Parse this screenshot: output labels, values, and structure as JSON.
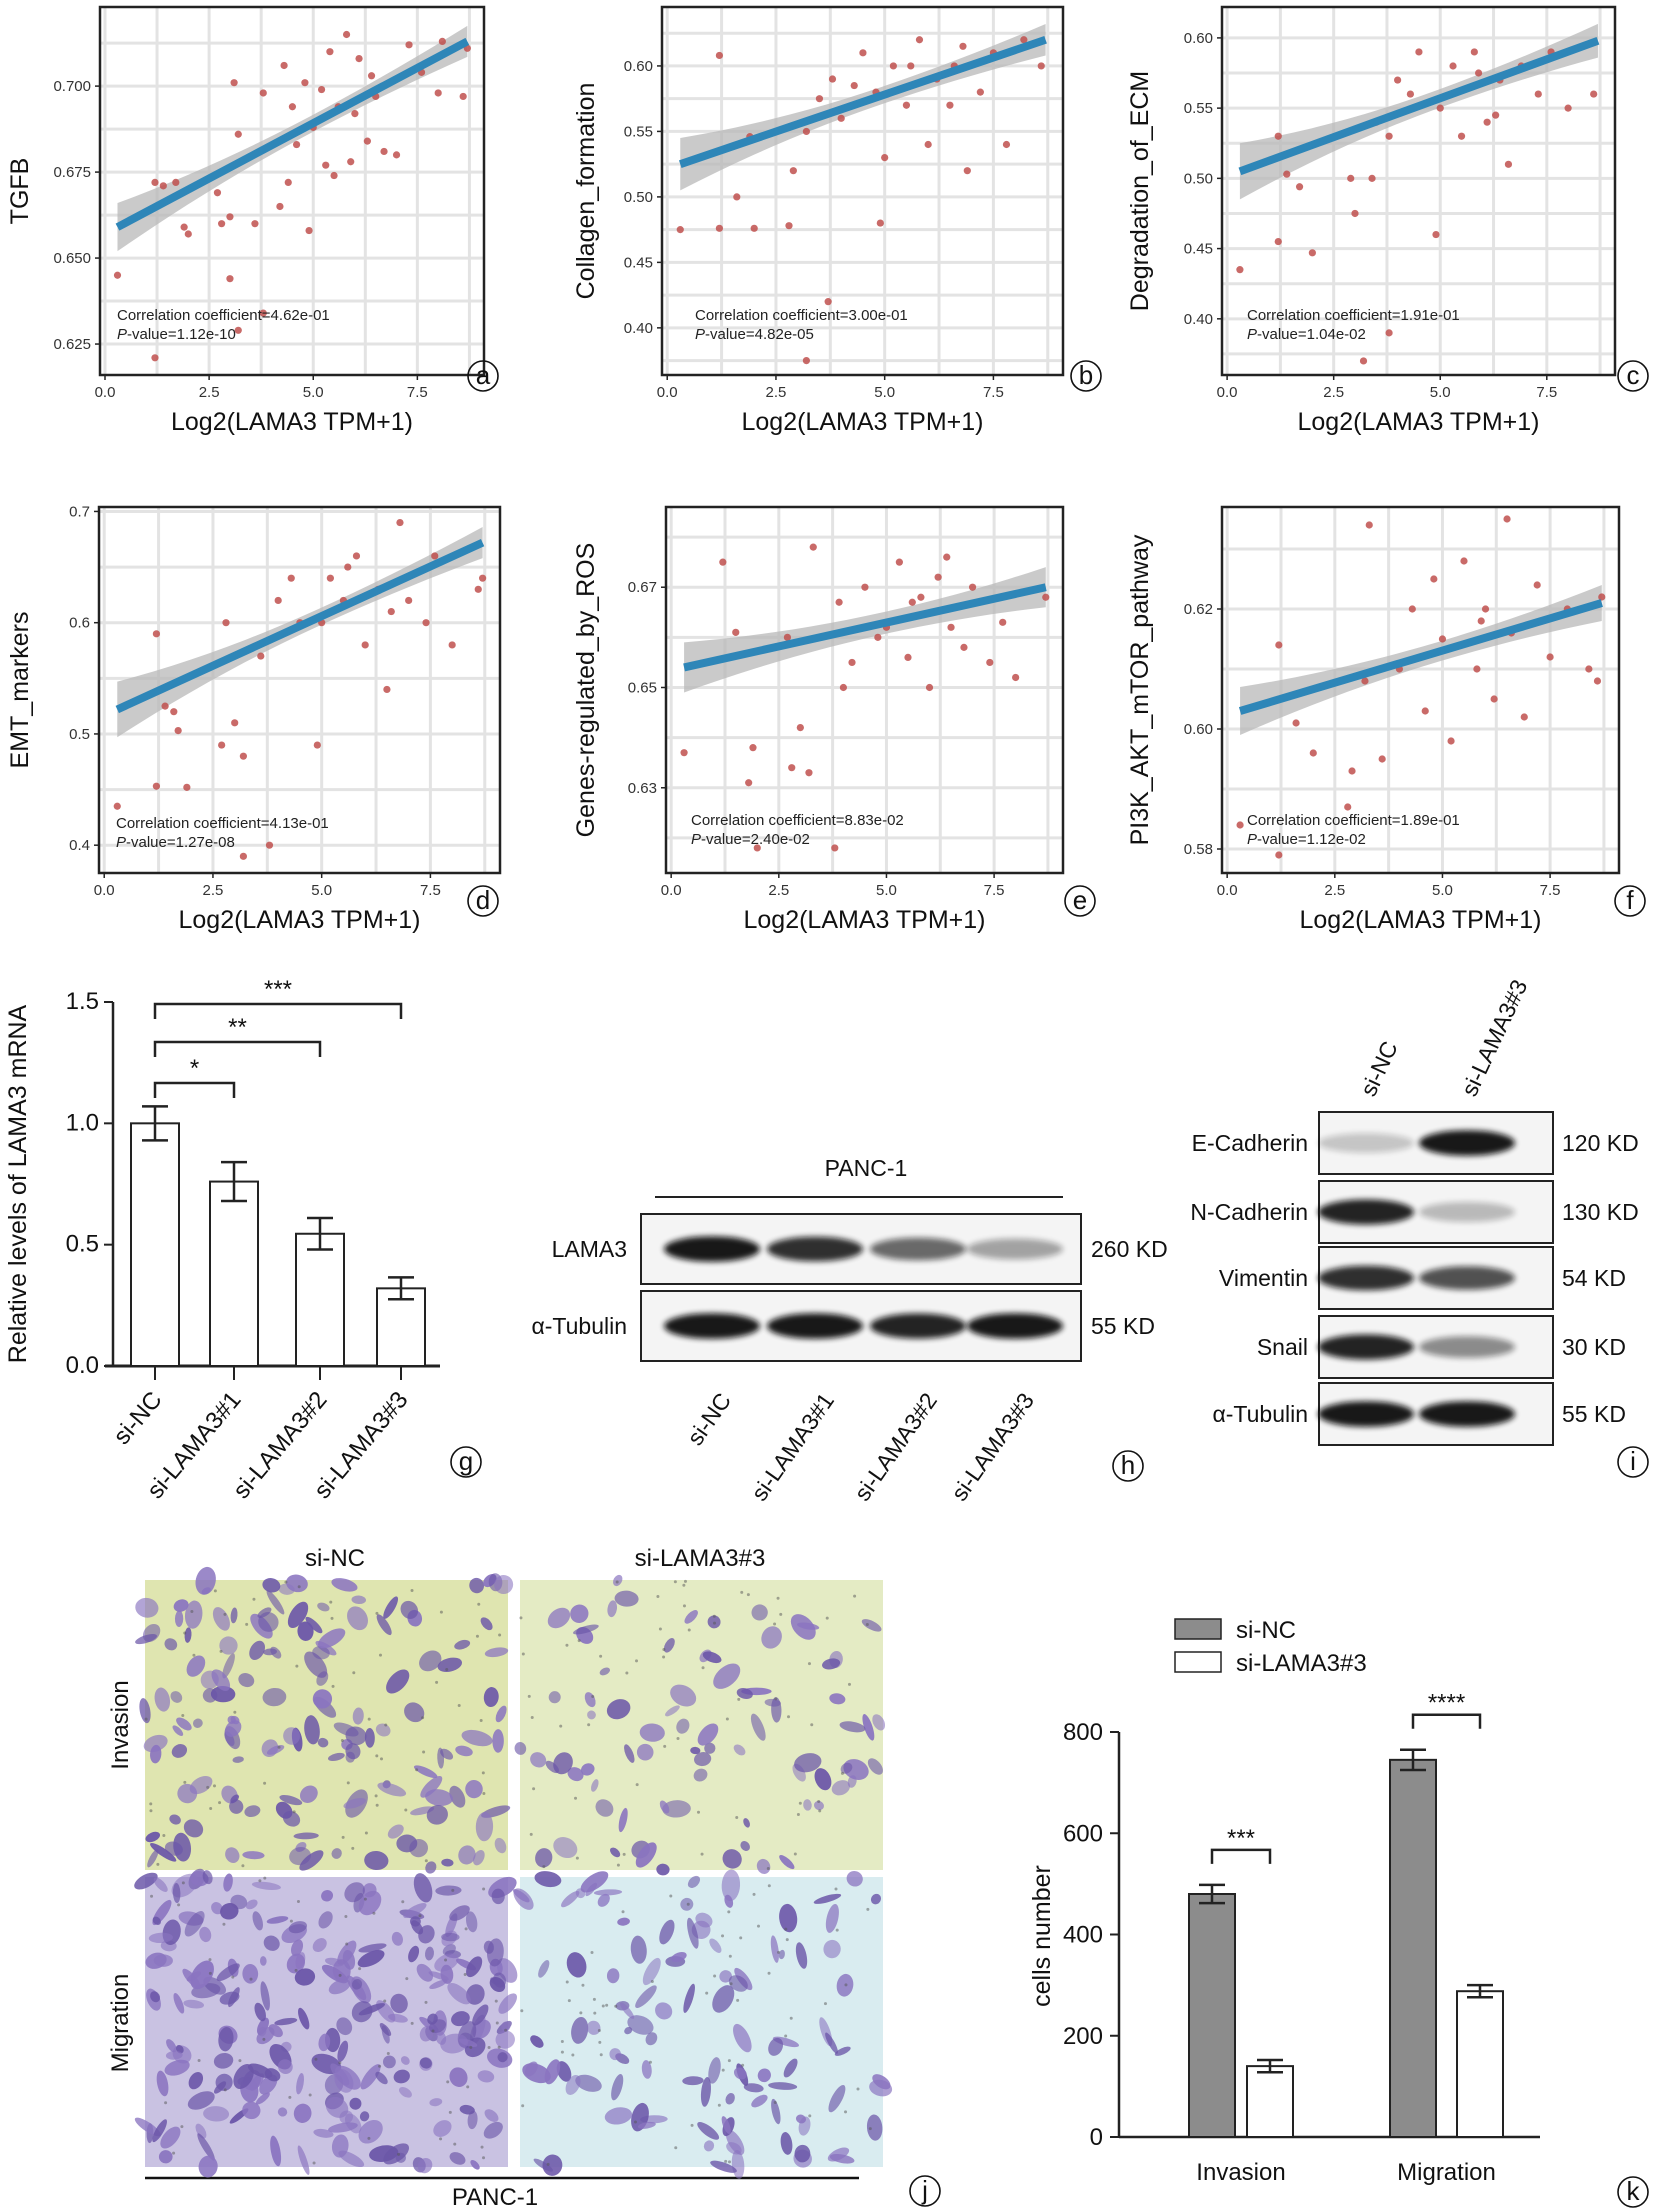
{
  "colors": {
    "point": "#c0504d",
    "line": "#2e86b8",
    "ci": "#b8b8b8",
    "grid": "#e3e3e3",
    "bar_nc": "#8c8c8c",
    "bar_kd": "#ffffff"
  },
  "chart_data": [
    {
      "panel": "a",
      "type": "scatter",
      "xlabel": "Log2(LAMA3 TPM+1)",
      "ylabel": "TGFB",
      "xlim": [
        -0.12,
        9.1
      ],
      "ylim": [
        0.616,
        0.723
      ],
      "xticks": [
        "0.0",
        "2.5",
        "5.0",
        "7.5"
      ],
      "yticks": [
        "0.625",
        "0.650",
        "0.675",
        "0.700"
      ],
      "annotation": {
        "corr": "Correlation coefficient=4.62e-01",
        "p_prefix": "P",
        "p": "-value=1.12e-10"
      },
      "fit": {
        "x": [
          0.3,
          8.7
        ],
        "y": [
          0.659,
          0.713
        ],
        "ci_halfwidth": [
          0.007,
          0.0045
        ]
      },
      "points": [
        [
          0.3,
          0.645
        ],
        [
          1.2,
          0.672
        ],
        [
          1.4,
          0.671
        ],
        [
          1.7,
          0.672
        ],
        [
          1.9,
          0.659
        ],
        [
          2.0,
          0.657
        ],
        [
          2.7,
          0.669
        ],
        [
          2.8,
          0.66
        ],
        [
          3.0,
          0.662
        ],
        [
          3.0,
          0.644
        ],
        [
          3.1,
          0.701
        ],
        [
          3.2,
          0.686
        ],
        [
          3.6,
          0.66
        ],
        [
          3.8,
          0.698
        ],
        [
          4.2,
          0.665
        ],
        [
          4.3,
          0.706
        ],
        [
          4.4,
          0.672
        ],
        [
          4.5,
          0.694
        ],
        [
          4.8,
          0.701
        ],
        [
          4.9,
          0.658
        ],
        [
          5.0,
          0.688
        ],
        [
          5.3,
          0.677
        ],
        [
          5.4,
          0.71
        ],
        [
          5.5,
          0.674
        ],
        [
          5.8,
          0.715
        ],
        [
          5.9,
          0.678
        ],
        [
          6.0,
          0.692
        ],
        [
          6.1,
          0.708
        ],
        [
          6.3,
          0.684
        ],
        [
          6.5,
          0.697
        ],
        [
          6.7,
          0.681
        ],
        [
          7.0,
          0.68
        ],
        [
          7.3,
          0.712
        ],
        [
          7.6,
          0.704
        ],
        [
          8.0,
          0.698
        ],
        [
          8.1,
          0.713
        ],
        [
          8.6,
          0.697
        ],
        [
          8.7,
          0.711
        ],
        [
          1.2,
          0.621
        ],
        [
          3.2,
          0.629
        ],
        [
          3.8,
          0.634
        ],
        [
          5.2,
          0.699
        ],
        [
          6.4,
          0.703
        ],
        [
          4.6,
          0.683
        ],
        [
          5.6,
          0.694
        ]
      ]
    },
    {
      "panel": "b",
      "type": "scatter",
      "xlabel": "Log2(LAMA3 TPM+1)",
      "ylabel": "Collagen_formation",
      "xlim": [
        -0.12,
        9.1
      ],
      "ylim": [
        0.364,
        0.645
      ],
      "xticks": [
        "0.0",
        "2.5",
        "5.0",
        "7.5"
      ],
      "yticks": [
        "0.40",
        "0.45",
        "0.50",
        "0.55",
        "0.60"
      ],
      "annotation": {
        "corr": "Correlation coefficient=3.00e-01",
        "p_prefix": "P",
        "p": "-value=4.82e-05"
      },
      "fit": {
        "x": [
          0.3,
          8.7
        ],
        "y": [
          0.525,
          0.62
        ],
        "ci_halfwidth": [
          0.02,
          0.012
        ]
      },
      "points": [
        [
          0.3,
          0.475
        ],
        [
          1.2,
          0.608
        ],
        [
          1.2,
          0.476
        ],
        [
          1.6,
          0.5
        ],
        [
          1.9,
          0.546
        ],
        [
          2.0,
          0.476
        ],
        [
          2.8,
          0.478
        ],
        [
          2.9,
          0.52
        ],
        [
          3.2,
          0.375
        ],
        [
          3.2,
          0.55
        ],
        [
          3.7,
          0.42
        ],
        [
          3.8,
          0.59
        ],
        [
          4.0,
          0.56
        ],
        [
          4.5,
          0.61
        ],
        [
          4.8,
          0.58
        ],
        [
          4.9,
          0.48
        ],
        [
          5.0,
          0.53
        ],
        [
          5.2,
          0.6
        ],
        [
          5.5,
          0.57
        ],
        [
          5.8,
          0.62
        ],
        [
          6.0,
          0.54
        ],
        [
          6.2,
          0.59
        ],
        [
          6.5,
          0.57
        ],
        [
          6.6,
          0.6
        ],
        [
          6.9,
          0.52
        ],
        [
          7.2,
          0.58
        ],
        [
          7.5,
          0.61
        ],
        [
          7.8,
          0.54
        ],
        [
          8.2,
          0.62
        ],
        [
          8.6,
          0.6
        ],
        [
          4.3,
          0.585
        ],
        [
          5.6,
          0.6
        ],
        [
          6.8,
          0.615
        ],
        [
          3.5,
          0.575
        ]
      ]
    },
    {
      "panel": "c",
      "type": "scatter",
      "xlabel": "Log2(LAMA3 TPM+1)",
      "ylabel": "Degradation_of_ECM",
      "xlim": [
        -0.12,
        9.1
      ],
      "ylim": [
        0.36,
        0.622
      ],
      "xticks": [
        "0.0",
        "2.5",
        "5.0",
        "7.5"
      ],
      "yticks": [
        "0.40",
        "0.45",
        "0.50",
        "0.55",
        "0.60"
      ],
      "annotation": {
        "corr": "Correlation coefficient=1.91e-01",
        "p_prefix": "P",
        "p": "-value=1.04e-02"
      },
      "fit": {
        "x": [
          0.3,
          8.7
        ],
        "y": [
          0.505,
          0.598
        ],
        "ci_halfwidth": [
          0.02,
          0.012
        ]
      },
      "points": [
        [
          0.3,
          0.435
        ],
        [
          1.2,
          0.53
        ],
        [
          1.2,
          0.455
        ],
        [
          1.4,
          0.503
        ],
        [
          1.7,
          0.494
        ],
        [
          2.0,
          0.447
        ],
        [
          2.9,
          0.5
        ],
        [
          3.0,
          0.475
        ],
        [
          3.2,
          0.37
        ],
        [
          3.4,
          0.5
        ],
        [
          3.8,
          0.39
        ],
        [
          3.8,
          0.53
        ],
        [
          4.0,
          0.57
        ],
        [
          4.5,
          0.59
        ],
        [
          4.9,
          0.46
        ],
        [
          5.0,
          0.55
        ],
        [
          5.3,
          0.58
        ],
        [
          5.5,
          0.53
        ],
        [
          5.8,
          0.59
        ],
        [
          6.1,
          0.54
        ],
        [
          6.4,
          0.57
        ],
        [
          6.6,
          0.51
        ],
        [
          6.9,
          0.58
        ],
        [
          7.3,
          0.56
        ],
        [
          7.6,
          0.59
        ],
        [
          8.0,
          0.55
        ],
        [
          8.6,
          0.56
        ],
        [
          4.3,
          0.56
        ],
        [
          5.9,
          0.575
        ],
        [
          6.3,
          0.545
        ],
        [
          3.5,
          0.54
        ]
      ]
    },
    {
      "panel": "d",
      "type": "scatter",
      "xlabel": "Log2(LAMA3 TPM+1)",
      "ylabel": "EMT_markers",
      "xlim": [
        -0.12,
        9.1
      ],
      "ylim": [
        0.375,
        0.704
      ],
      "xticks": [
        "0.0",
        "2.5",
        "5.0",
        "7.5"
      ],
      "yticks": [
        "0.4",
        "0.5",
        "0.6",
        "0.7"
      ],
      "annotation": {
        "corr": "Correlation coefficient=4.13e-01",
        "p_prefix": "P",
        "p": "-value=1.27e-08"
      },
      "fit": {
        "x": [
          0.3,
          8.7
        ],
        "y": [
          0.522,
          0.672
        ],
        "ci_halfwidth": [
          0.025,
          0.014
        ]
      },
      "points": [
        [
          0.3,
          0.435
        ],
        [
          1.2,
          0.59
        ],
        [
          1.2,
          0.453
        ],
        [
          1.4,
          0.525
        ],
        [
          1.6,
          0.52
        ],
        [
          1.7,
          0.503
        ],
        [
          1.9,
          0.452
        ],
        [
          2.7,
          0.49
        ],
        [
          2.8,
          0.6
        ],
        [
          3.0,
          0.51
        ],
        [
          3.2,
          0.39
        ],
        [
          3.2,
          0.48
        ],
        [
          3.6,
          0.57
        ],
        [
          3.8,
          0.4
        ],
        [
          4.0,
          0.62
        ],
        [
          4.3,
          0.64
        ],
        [
          4.9,
          0.49
        ],
        [
          5.0,
          0.6
        ],
        [
          5.2,
          0.64
        ],
        [
          5.5,
          0.62
        ],
        [
          5.8,
          0.66
        ],
        [
          6.0,
          0.58
        ],
        [
          6.3,
          0.63
        ],
        [
          6.5,
          0.54
        ],
        [
          6.8,
          0.69
        ],
        [
          7.0,
          0.62
        ],
        [
          7.4,
          0.6
        ],
        [
          7.6,
          0.66
        ],
        [
          8.0,
          0.58
        ],
        [
          8.6,
          0.63
        ],
        [
          8.7,
          0.64
        ],
        [
          4.5,
          0.6
        ],
        [
          5.6,
          0.65
        ],
        [
          6.6,
          0.61
        ]
      ]
    },
    {
      "panel": "e",
      "type": "scatter",
      "xlabel": "Log2(LAMA3 TPM+1)",
      "ylabel": "Genes-regulated_by_ROS",
      "xlim": [
        -0.12,
        9.1
      ],
      "ylim": [
        0.613,
        0.686
      ],
      "xticks": [
        "0.0",
        "2.5",
        "5.0",
        "7.5"
      ],
      "yticks": [
        "0.63",
        "0.65",
        "0.67"
      ],
      "annotation": {
        "corr": "Correlation coefficient=8.83e-02",
        "p_prefix": "P",
        "p": "-value=2.40e-02"
      },
      "fit": {
        "x": [
          0.3,
          8.7
        ],
        "y": [
          0.654,
          0.67
        ],
        "ci_halfwidth": [
          0.005,
          0.004
        ]
      },
      "points": [
        [
          0.3,
          0.637
        ],
        [
          1.2,
          0.675
        ],
        [
          1.5,
          0.661
        ],
        [
          1.8,
          0.631
        ],
        [
          1.9,
          0.638
        ],
        [
          2.0,
          0.618
        ],
        [
          2.7,
          0.66
        ],
        [
          2.8,
          0.634
        ],
        [
          3.0,
          0.642
        ],
        [
          3.2,
          0.633
        ],
        [
          3.3,
          0.678
        ],
        [
          3.8,
          0.618
        ],
        [
          3.9,
          0.667
        ],
        [
          4.2,
          0.655
        ],
        [
          4.5,
          0.67
        ],
        [
          4.8,
          0.66
        ],
        [
          5.0,
          0.662
        ],
        [
          5.3,
          0.675
        ],
        [
          5.5,
          0.656
        ],
        [
          5.8,
          0.668
        ],
        [
          6.0,
          0.65
        ],
        [
          6.2,
          0.672
        ],
        [
          6.5,
          0.662
        ],
        [
          6.8,
          0.658
        ],
        [
          7.0,
          0.67
        ],
        [
          7.4,
          0.655
        ],
        [
          7.7,
          0.663
        ],
        [
          8.0,
          0.652
        ],
        [
          8.7,
          0.668
        ],
        [
          4.0,
          0.65
        ],
        [
          5.6,
          0.667
        ],
        [
          6.4,
          0.676
        ]
      ]
    },
    {
      "panel": "f",
      "type": "scatter",
      "xlabel": "Log2(LAMA3 TPM+1)",
      "ylabel": "PI3K_AKT_mTOR_pathway",
      "xlim": [
        -0.12,
        9.1
      ],
      "ylim": [
        0.576,
        0.637
      ],
      "xticks": [
        "0.0",
        "2.5",
        "5.0",
        "7.5"
      ],
      "yticks": [
        "0.58",
        "0.60",
        "0.62"
      ],
      "annotation": {
        "corr": "Correlation coefficient=1.89e-01",
        "p_prefix": "P",
        "p": "-value=1.12e-02"
      },
      "fit": {
        "x": [
          0.3,
          8.7
        ],
        "y": [
          0.603,
          0.621
        ],
        "ci_halfwidth": [
          0.004,
          0.003
        ]
      },
      "points": [
        [
          0.3,
          0.584
        ],
        [
          1.2,
          0.579
        ],
        [
          1.2,
          0.614
        ],
        [
          1.6,
          0.601
        ],
        [
          2.0,
          0.596
        ],
        [
          2.8,
          0.587
        ],
        [
          2.9,
          0.593
        ],
        [
          3.2,
          0.608
        ],
        [
          3.3,
          0.634
        ],
        [
          3.6,
          0.595
        ],
        [
          4.0,
          0.61
        ],
        [
          4.3,
          0.62
        ],
        [
          4.6,
          0.603
        ],
        [
          5.0,
          0.615
        ],
        [
          5.2,
          0.598
        ],
        [
          5.5,
          0.628
        ],
        [
          5.8,
          0.61
        ],
        [
          6.0,
          0.62
        ],
        [
          6.2,
          0.605
        ],
        [
          6.5,
          0.635
        ],
        [
          6.6,
          0.616
        ],
        [
          6.9,
          0.602
        ],
        [
          7.2,
          0.624
        ],
        [
          7.5,
          0.612
        ],
        [
          7.9,
          0.62
        ],
        [
          8.4,
          0.61
        ],
        [
          8.7,
          0.622
        ],
        [
          8.6,
          0.608
        ],
        [
          4.8,
          0.625
        ],
        [
          5.9,
          0.618
        ]
      ]
    },
    {
      "panel": "g",
      "type": "bar",
      "ylabel": "Relative levels of LAMA3 mRNA",
      "ylim": [
        0,
        1.5
      ],
      "yticks": [
        "0.0",
        "0.5",
        "1.0",
        "1.5"
      ],
      "categories": [
        "si-NC",
        "si-LAMA3#1",
        "si-LAMA3#2",
        "si-LAMA3#3"
      ],
      "values": [
        1.0,
        0.76,
        0.545,
        0.32
      ],
      "errors": [
        0.07,
        0.08,
        0.065,
        0.045
      ],
      "significance": [
        {
          "from": 0,
          "to": 1,
          "label": "*"
        },
        {
          "from": 0,
          "to": 2,
          "label": "**"
        },
        {
          "from": 0,
          "to": 3,
          "label": "***"
        }
      ]
    },
    {
      "panel": "k",
      "type": "bar",
      "ylabel": "cells number",
      "ylim": [
        0,
        800
      ],
      "yticks": [
        "0",
        "200",
        "400",
        "600",
        "800"
      ],
      "categories": [
        "Invasion",
        "Migration"
      ],
      "series": [
        {
          "name": "si-NC",
          "values": [
            480,
            745
          ],
          "errors": [
            18,
            20
          ]
        },
        {
          "name": "si-LAMA3#3",
          "values": [
            140,
            288
          ],
          "errors": [
            12,
            12
          ]
        }
      ],
      "legend": "top",
      "significance": [
        {
          "category": 0,
          "label": "***"
        },
        {
          "category": 1,
          "label": "****"
        }
      ]
    }
  ],
  "blot_h": {
    "title": "PANC-1",
    "rows": [
      {
        "label": "LAMA3",
        "size": "260 KD",
        "intensity": [
          0.95,
          0.85,
          0.6,
          0.35
        ]
      },
      {
        "label": "α-Tubulin",
        "size": "55 KD",
        "intensity": [
          0.95,
          0.95,
          0.9,
          0.95
        ]
      }
    ],
    "lanes": [
      "si-NC",
      "si-LAMA3#1",
      "si-LAMA3#2",
      "si-LAMA3#3"
    ]
  },
  "blot_i": {
    "lanes": [
      "si-NC",
      "si-LAMA3#3"
    ],
    "rows": [
      {
        "label": "E-Cadherin",
        "size": "120 KD",
        "intensity": [
          0.2,
          0.95
        ]
      },
      {
        "label": "N-Cadherin",
        "size": "130 KD",
        "intensity": [
          0.9,
          0.25
        ]
      },
      {
        "label": "Vimentin",
        "size": "54 KD",
        "intensity": [
          0.85,
          0.7
        ]
      },
      {
        "label": "Snail",
        "size": "30 KD",
        "intensity": [
          0.9,
          0.45
        ]
      },
      {
        "label": "α-Tubulin",
        "size": "55 KD",
        "intensity": [
          0.95,
          0.95
        ]
      }
    ]
  },
  "micro_j": {
    "columns": [
      "si-NC",
      "si-LAMA3#3"
    ],
    "rows": [
      "Invasion",
      "Migration"
    ],
    "cell_line": "PANC-1"
  },
  "panel_labels": [
    "a",
    "b",
    "c",
    "d",
    "e",
    "f",
    "g",
    "h",
    "i",
    "j",
    "k"
  ]
}
